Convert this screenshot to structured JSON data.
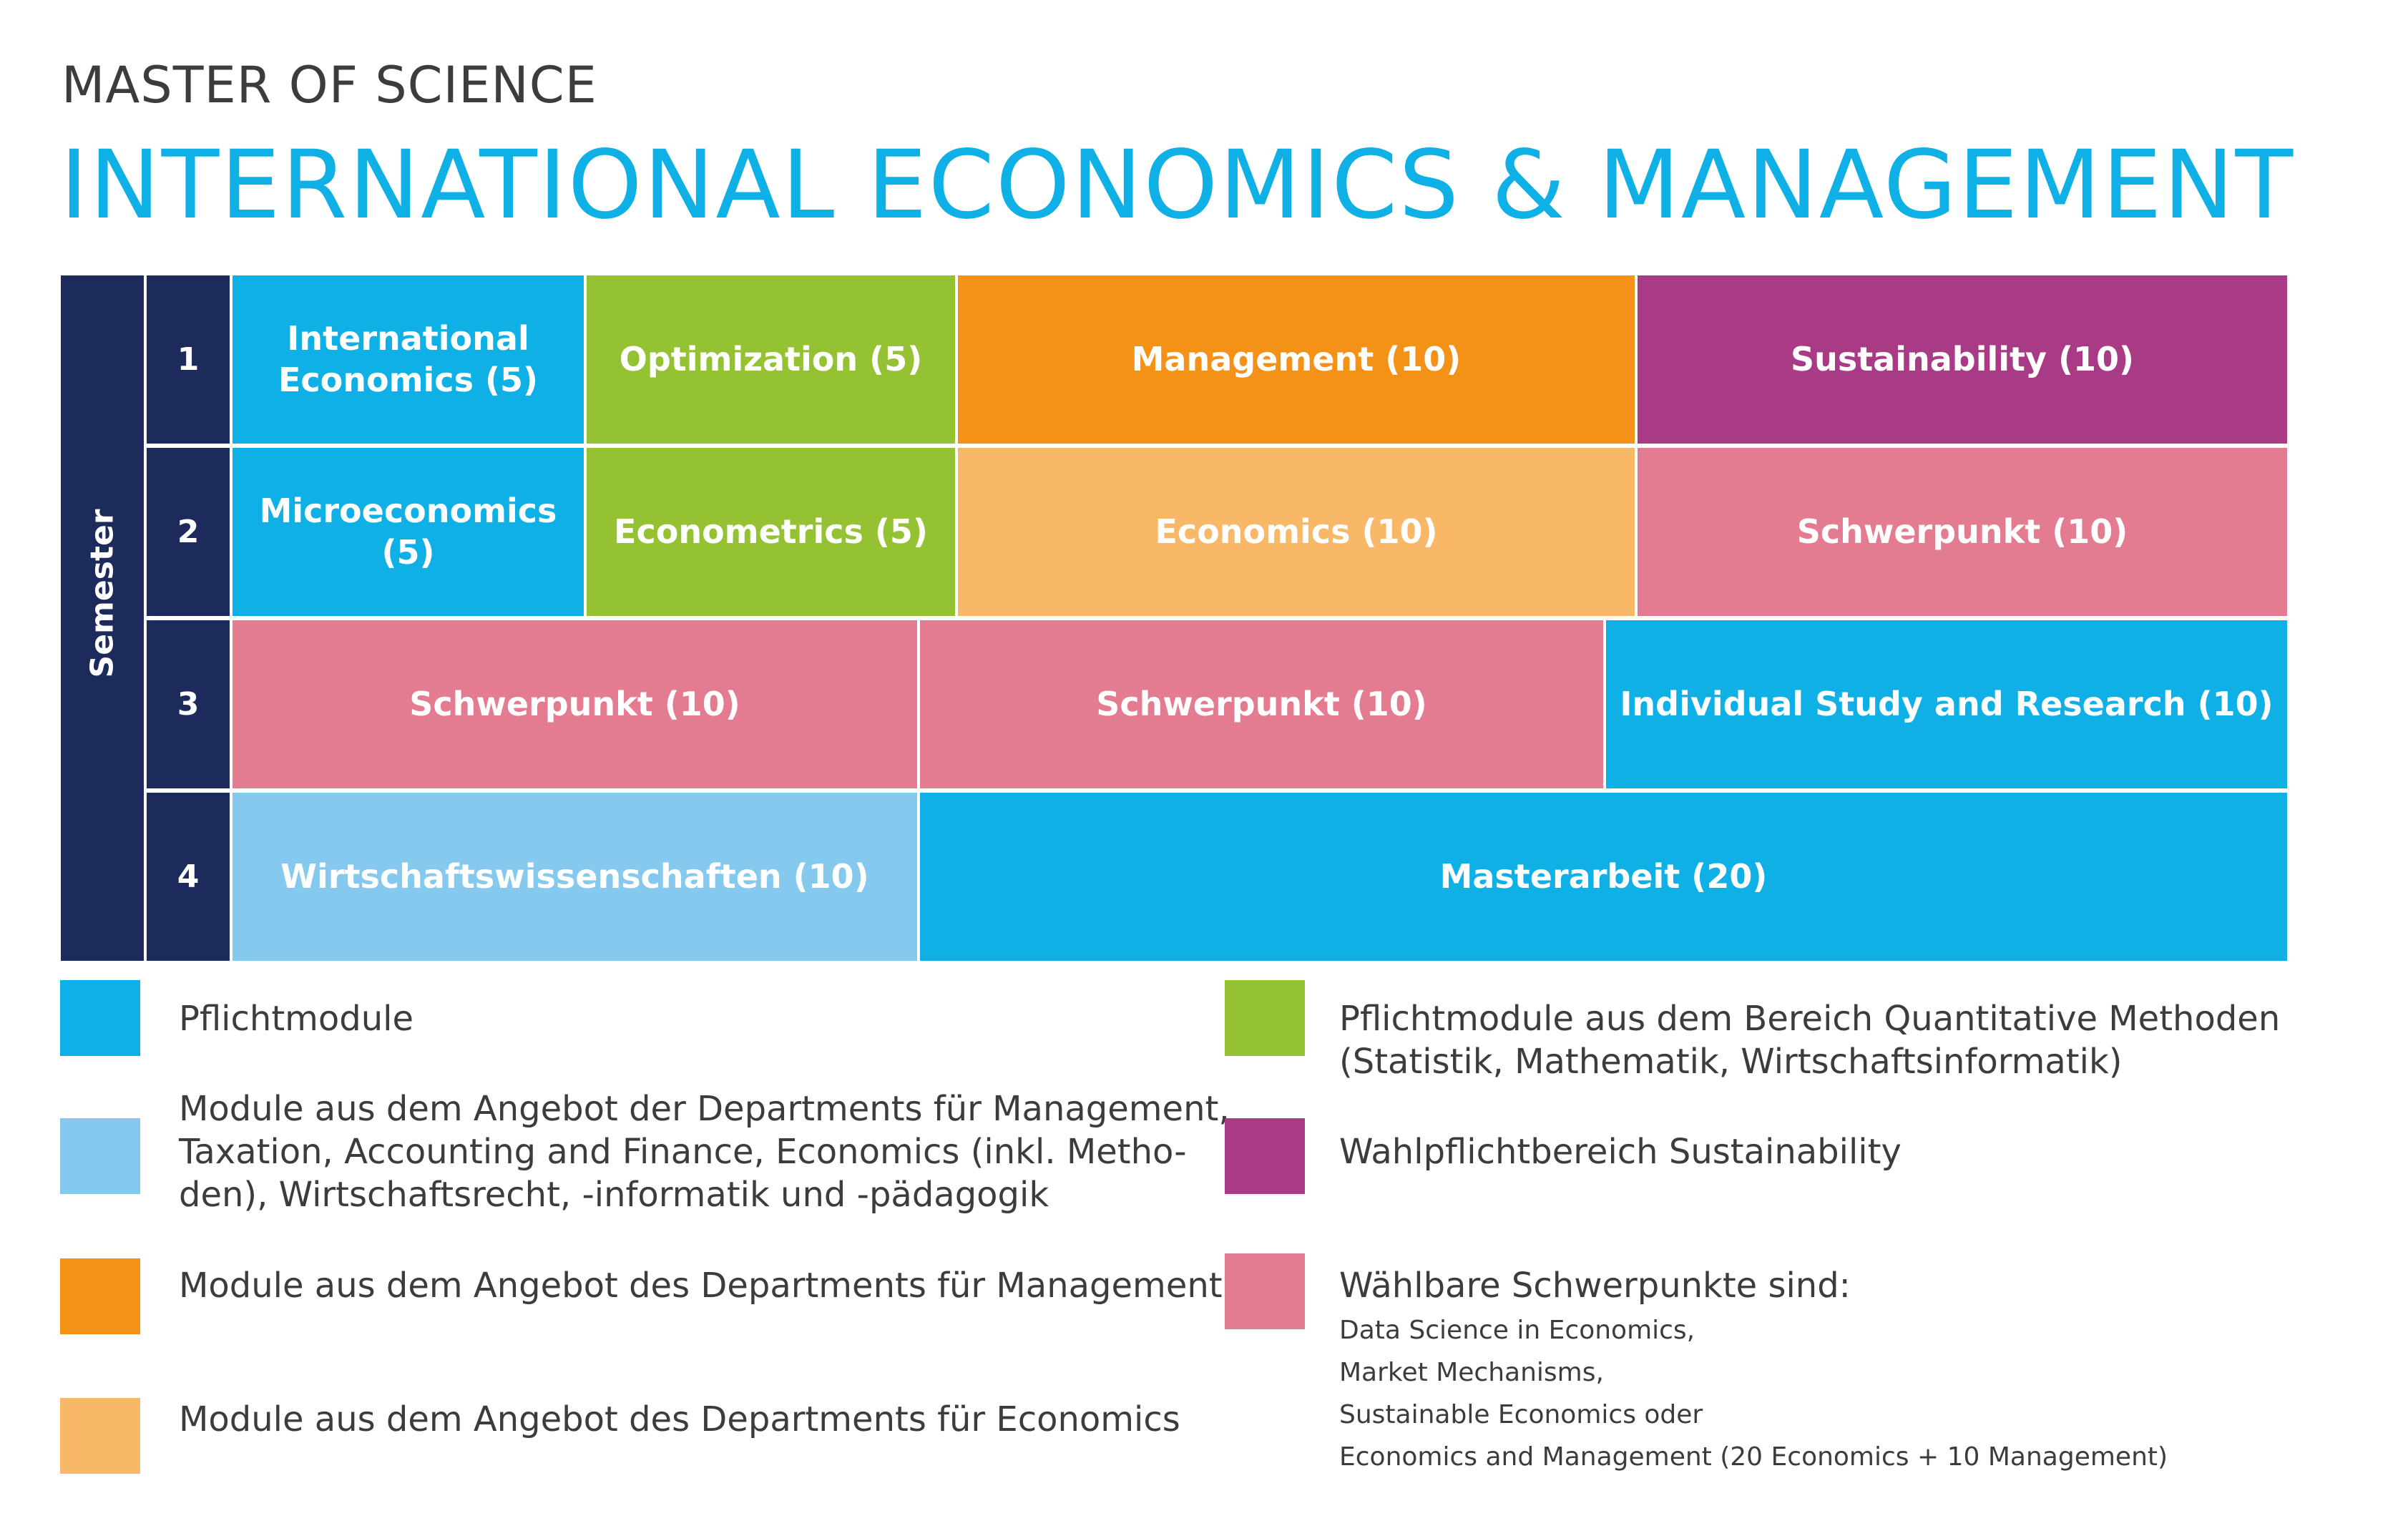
{
  "header": {
    "subtitle": "MASTER OF SCIENCE",
    "title": "INTERNATIONAL ECONOMICS & MANAGEMENT"
  },
  "colors": {
    "navy": "#1d2a5c",
    "pflicht": "#0fb0e6",
    "quant": "#95c232",
    "management": "#f39216",
    "economics": "#f9b768",
    "sustainability": "#a93a86",
    "schwerpunkt": "#e47c91",
    "wirtschaft": "#86c9ef"
  },
  "semester_axis": {
    "label": "Semester",
    "numbers": [
      "1",
      "2",
      "3",
      "4"
    ]
  },
  "modules": {
    "s1": {
      "intl_econ_line1": "International",
      "intl_econ_line2": "Economics (5)",
      "optimization": "Optimization (5)",
      "management": "Management (10)",
      "sustainability": "Sustainability (10)"
    },
    "s2": {
      "microeconomics": "Microeconomics (5)",
      "econometrics": "Econometrics (5)",
      "economics": "Economics (10)",
      "schwerpunkt": "Schwerpunkt (10)"
    },
    "s3": {
      "schwerpunkt_a": "Schwerpunkt (10)",
      "schwerpunkt_b": "Schwerpunkt (10)",
      "individual": "Individual Study and Research (10)"
    },
    "s4": {
      "wirtschaft": "Wirtschaftswissenschaften (10)",
      "masterarbeit": "Masterarbeit (20)"
    }
  },
  "legend": {
    "pflicht": "Pflichtmodule",
    "departments_line1": "Module aus dem Angebot der Departments für Management,",
    "departments_line2": "Taxation, Accounting and Finance, Economics (inkl. Metho-",
    "departments_line3": "den), Wirtschaftsrecht, -informatik und -pädagogik",
    "management": "Module aus dem Angebot des Departments für Management",
    "economics": "Module aus dem Angebot des Departments für Economics",
    "quant_line1": "Pflichtmodule aus dem Bereich Quantitative Methoden",
    "quant_line2": "(Statistik, Mathematik, Wirtschaftsinformatik)",
    "sustainability": "Wahlpflichtbereich Sustainability",
    "schwerpunkt_title": "Wählbare Schwerpunkte sind:",
    "schwerpunkt_items": [
      "Data Science in Economics,",
      "Market Mechanisms,",
      "Sustainable Economics oder",
      "Economics and Management (20 Economics + 10 Management)"
    ]
  }
}
